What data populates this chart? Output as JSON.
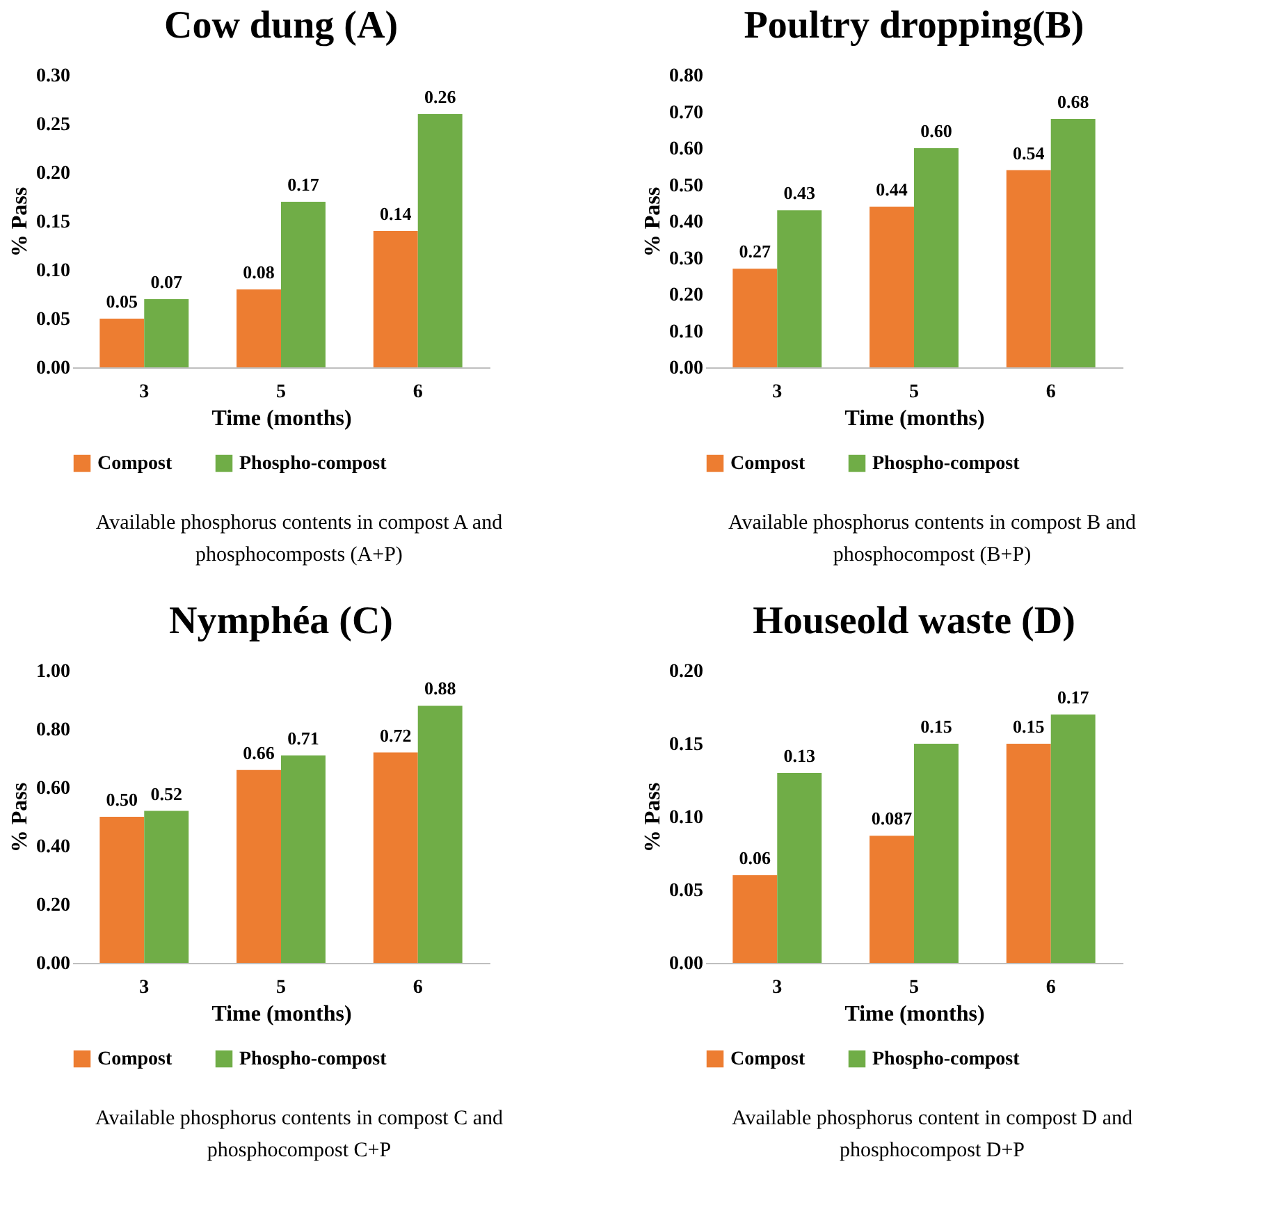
{
  "chart_data": [
    {
      "type": "bar",
      "title": "Cow dung (A)",
      "xlabel": "Time (months)",
      "ylabel": "% Pass",
      "categories": [
        "3",
        "5",
        "6"
      ],
      "series": [
        {
          "name": "Compost",
          "color": "#ed7d31",
          "values": [
            0.05,
            0.08,
            0.14
          ],
          "value_labels": [
            "0.05",
            "0.08",
            "0.14"
          ]
        },
        {
          "name": "Phospho-compost",
          "color": "#70ad47",
          "values": [
            0.07,
            0.17,
            0.26
          ],
          "value_labels": [
            "0.07",
            "0.17",
            "0.26"
          ]
        }
      ],
      "ylim": [
        0,
        0.3
      ],
      "yticks": [
        {
          "value": 0,
          "label": "0.00"
        },
        {
          "value": 0.05,
          "label": "0.05"
        },
        {
          "value": 0.1,
          "label": "0.10"
        },
        {
          "value": 0.15,
          "label": "0.15"
        },
        {
          "value": 0.2,
          "label": "0.20"
        },
        {
          "value": 0.25,
          "label": "0.25"
        },
        {
          "value": 0.3,
          "label": "0.30"
        }
      ],
      "legend": "bottom",
      "annotations": [
        "Available phosphorus contents in compost A and phosphocomposts (A+P)"
      ]
    },
    {
      "type": "bar",
      "title": "Poultry dropping(B)",
      "xlabel": "Time (months)",
      "ylabel": "% Pass",
      "categories": [
        "3",
        "5",
        "6"
      ],
      "series": [
        {
          "name": "Compost",
          "color": "#ed7d31",
          "values": [
            0.27,
            0.44,
            0.54
          ],
          "value_labels": [
            "0.27",
            "0.44",
            "0.54"
          ]
        },
        {
          "name": "Phospho-compost",
          "color": "#70ad47",
          "values": [
            0.43,
            0.6,
            0.68
          ],
          "value_labels": [
            "0.43",
            "0.60",
            "0.68"
          ]
        }
      ],
      "ylim": [
        0,
        0.8
      ],
      "yticks": [
        {
          "value": 0,
          "label": "0.00"
        },
        {
          "value": 0.1,
          "label": "0.10"
        },
        {
          "value": 0.2,
          "label": "0.20"
        },
        {
          "value": 0.3,
          "label": "0.30"
        },
        {
          "value": 0.4,
          "label": "0.40"
        },
        {
          "value": 0.5,
          "label": "0.50"
        },
        {
          "value": 0.6,
          "label": "0.60"
        },
        {
          "value": 0.7,
          "label": "0.70"
        },
        {
          "value": 0.8,
          "label": "0.80"
        }
      ],
      "legend": "bottom",
      "annotations": [
        "Available phosphorus contents in compost B and phosphocompost (B+P)"
      ]
    },
    {
      "type": "bar",
      "title": "Nymphéa (C)",
      "xlabel": "Time (months)",
      "ylabel": "% Pass",
      "categories": [
        "3",
        "5",
        "6"
      ],
      "series": [
        {
          "name": "Compost",
          "color": "#ed7d31",
          "values": [
            0.5,
            0.66,
            0.72
          ],
          "value_labels": [
            "0.50",
            "0.66",
            "0.72"
          ]
        },
        {
          "name": "Phospho-compost",
          "color": "#70ad47",
          "values": [
            0.52,
            0.71,
            0.88
          ],
          "value_labels": [
            "0.52",
            "0.71",
            "0.88"
          ]
        }
      ],
      "ylim": [
        0,
        1
      ],
      "yticks": [
        {
          "value": 0,
          "label": "0.00"
        },
        {
          "value": 0.2,
          "label": "0.20"
        },
        {
          "value": 0.4,
          "label": "0.40"
        },
        {
          "value": 0.6,
          "label": "0.60"
        },
        {
          "value": 0.8,
          "label": "0.80"
        },
        {
          "value": 1,
          "label": "1.00"
        }
      ],
      "legend": "bottom",
      "annotations": [
        "Available phosphorus contents in compost C and phosphocompost C+P"
      ]
    },
    {
      "type": "bar",
      "title": "Houseold waste (D)",
      "xlabel": "Time (months)",
      "ylabel": "% Pass",
      "categories": [
        "3",
        "5",
        "6"
      ],
      "series": [
        {
          "name": "Compost",
          "color": "#ed7d31",
          "values": [
            0.06,
            0.087,
            0.15
          ],
          "value_labels": [
            "0.06",
            "0.087",
            "0.15"
          ]
        },
        {
          "name": "Phospho-compost",
          "color": "#70ad47",
          "values": [
            0.13,
            0.15,
            0.17
          ],
          "value_labels": [
            "0.13",
            "0.15",
            "0.17"
          ]
        }
      ],
      "ylim": [
        0,
        0.2
      ],
      "yticks": [
        {
          "value": 0,
          "label": "0.00"
        },
        {
          "value": 0.05,
          "label": "0.05"
        },
        {
          "value": 0.1,
          "label": "0.10"
        },
        {
          "value": 0.15,
          "label": "0.15"
        },
        {
          "value": 0.2,
          "label": "0.20"
        }
      ],
      "legend": "bottom",
      "annotations": [
        "Available phosphorus content in compost D and phosphocompost D+P"
      ]
    }
  ]
}
